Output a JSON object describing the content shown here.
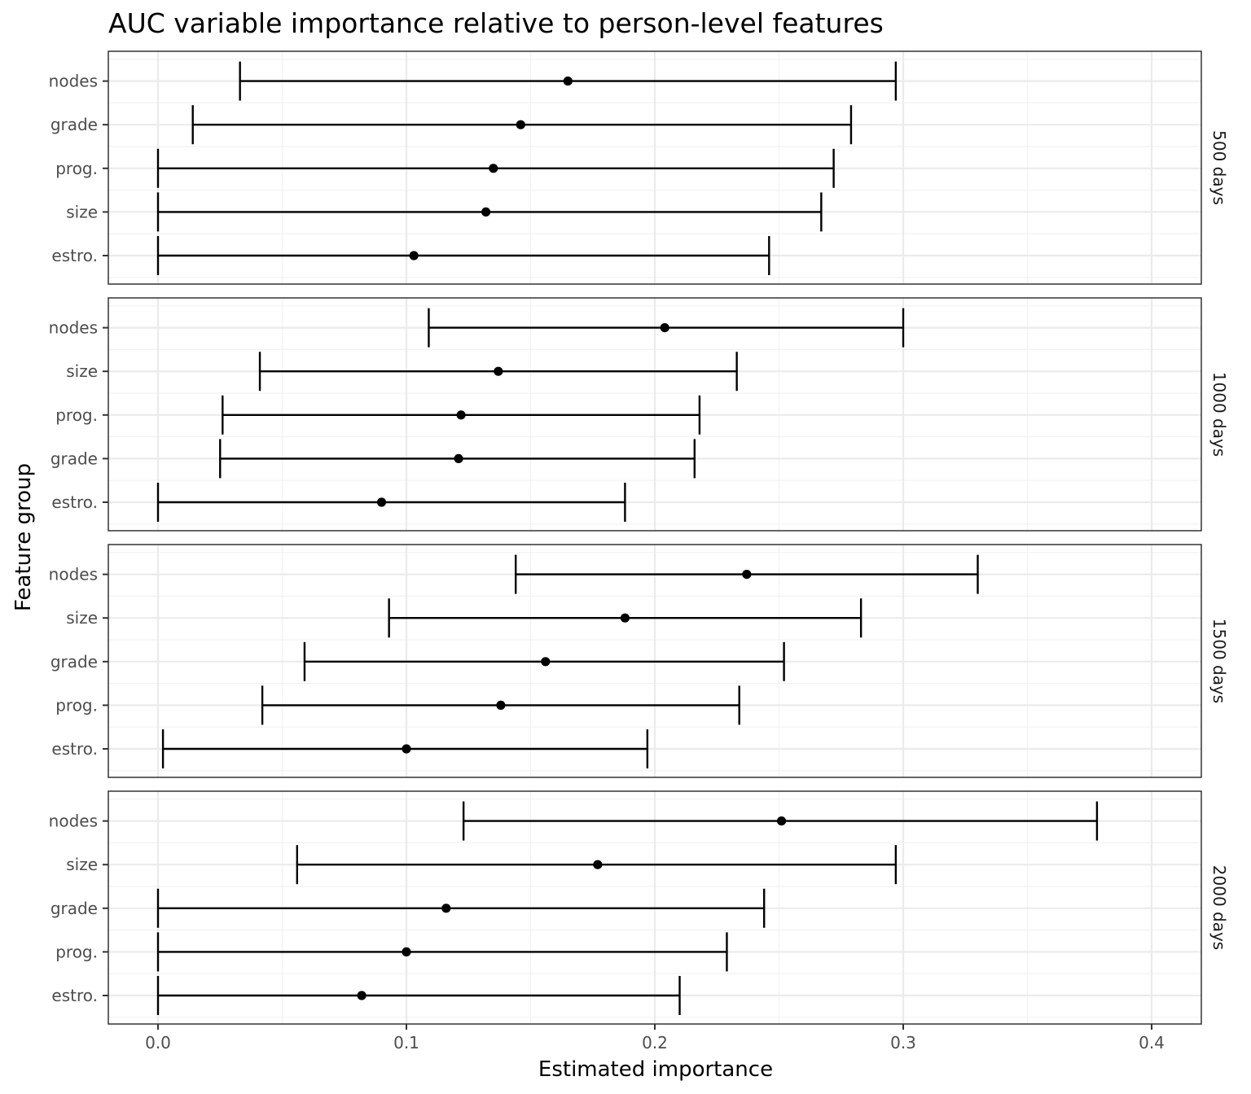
{
  "chart_data": {
    "type": "errorbar",
    "title": "AUC variable importance relative to person-level features",
    "xlabel": "Estimated importance",
    "ylabel": "Feature group",
    "xlim": [
      -0.02,
      0.42
    ],
    "xticks": [
      0.0,
      0.1,
      0.2,
      0.3,
      0.4
    ],
    "xtick_labels": [
      "0.0",
      "0.1",
      "0.2",
      "0.3",
      "0.4"
    ],
    "grid": true,
    "panels": [
      {
        "label": "500 days",
        "rows": [
          {
            "feature": "nodes",
            "estimate": 0.165,
            "lower": 0.033,
            "upper": 0.297
          },
          {
            "feature": "grade",
            "estimate": 0.146,
            "lower": 0.014,
            "upper": 0.279
          },
          {
            "feature": "prog.",
            "estimate": 0.135,
            "lower": 0.0,
            "upper": 0.272
          },
          {
            "feature": "size",
            "estimate": 0.132,
            "lower": 0.0,
            "upper": 0.267
          },
          {
            "feature": "estro.",
            "estimate": 0.103,
            "lower": 0.0,
            "upper": 0.246
          }
        ]
      },
      {
        "label": "1000 days",
        "rows": [
          {
            "feature": "nodes",
            "estimate": 0.204,
            "lower": 0.109,
            "upper": 0.3
          },
          {
            "feature": "size",
            "estimate": 0.137,
            "lower": 0.041,
            "upper": 0.233
          },
          {
            "feature": "prog.",
            "estimate": 0.122,
            "lower": 0.026,
            "upper": 0.218
          },
          {
            "feature": "grade",
            "estimate": 0.121,
            "lower": 0.025,
            "upper": 0.216
          },
          {
            "feature": "estro.",
            "estimate": 0.09,
            "lower": 0.0,
            "upper": 0.188
          }
        ]
      },
      {
        "label": "1500 days",
        "rows": [
          {
            "feature": "nodes",
            "estimate": 0.237,
            "lower": 0.144,
            "upper": 0.33
          },
          {
            "feature": "size",
            "estimate": 0.188,
            "lower": 0.093,
            "upper": 0.283
          },
          {
            "feature": "grade",
            "estimate": 0.156,
            "lower": 0.059,
            "upper": 0.252
          },
          {
            "feature": "prog.",
            "estimate": 0.138,
            "lower": 0.042,
            "upper": 0.234
          },
          {
            "feature": "estro.",
            "estimate": 0.1,
            "lower": 0.002,
            "upper": 0.197
          }
        ]
      },
      {
        "label": "2000 days",
        "rows": [
          {
            "feature": "nodes",
            "estimate": 0.251,
            "lower": 0.123,
            "upper": 0.378
          },
          {
            "feature": "size",
            "estimate": 0.177,
            "lower": 0.056,
            "upper": 0.297
          },
          {
            "feature": "grade",
            "estimate": 0.116,
            "lower": 0.0,
            "upper": 0.244
          },
          {
            "feature": "prog.",
            "estimate": 0.1,
            "lower": 0.0,
            "upper": 0.229
          },
          {
            "feature": "estro.",
            "estimate": 0.082,
            "lower": 0.0,
            "upper": 0.21
          }
        ]
      }
    ],
    "colors": {
      "mark": "#000000",
      "grid_major": "#ebebeb",
      "grid_minor": "#f2f2f2",
      "panel_border": "#333333",
      "tick_text": "#4d4d4d"
    }
  }
}
